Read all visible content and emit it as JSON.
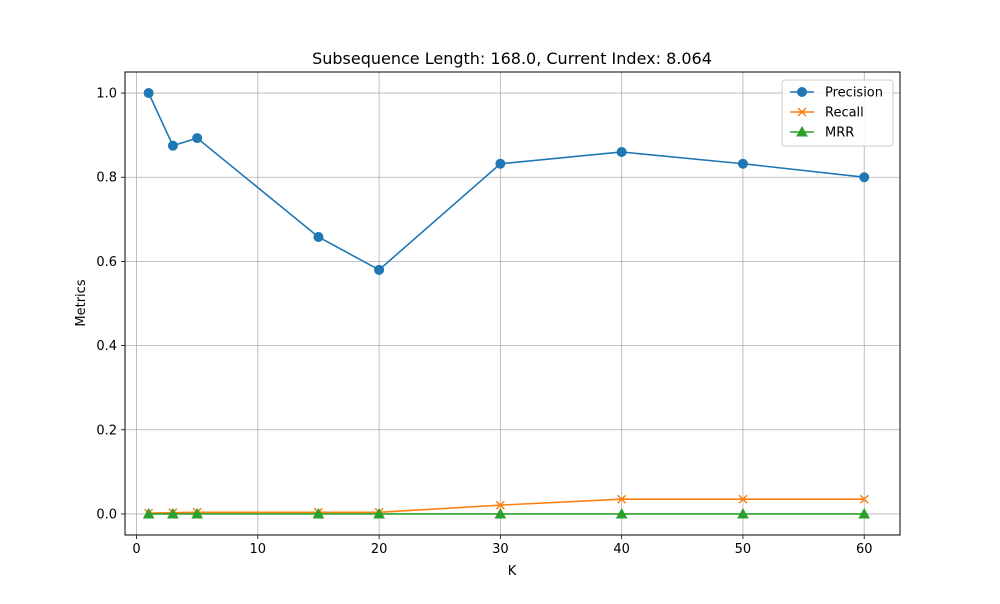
{
  "chart_data": {
    "type": "line",
    "title": "Subsequence Length: 168.0, Current Index: 8.064",
    "xlabel": "K",
    "ylabel": "Metrics",
    "xlim": [
      -0.95,
      62.95
    ],
    "ylim": [
      -0.05,
      1.05
    ],
    "xticks": [
      0,
      10,
      20,
      30,
      40,
      50,
      60
    ],
    "xtick_labels": [
      "0",
      "10",
      "20",
      "30",
      "40",
      "50",
      "60"
    ],
    "yticks": [
      0.0,
      0.2,
      0.4,
      0.6,
      0.8,
      1.0
    ],
    "ytick_labels": [
      "0.0",
      "0.2",
      "0.4",
      "0.6",
      "0.8",
      "1.0"
    ],
    "grid": true,
    "legend_position": "top-right",
    "x": [
      1,
      3,
      5,
      15,
      20,
      30,
      40,
      50,
      60
    ],
    "series": [
      {
        "name": "Precision",
        "color": "#1f77b4",
        "marker": "circle",
        "values": [
          1.0,
          0.875,
          0.893,
          0.658,
          0.58,
          0.832,
          0.86,
          0.832,
          0.8
        ]
      },
      {
        "name": "Recall",
        "color": "#ff7f0e",
        "marker": "x",
        "values": [
          0.002,
          0.003,
          0.004,
          0.004,
          0.004,
          0.021,
          0.035,
          0.035,
          0.035
        ]
      },
      {
        "name": "MRR",
        "color": "#2ca02c",
        "marker": "triangle",
        "values": [
          0.0,
          0.0,
          0.0,
          0.0,
          0.0,
          0.0,
          0.0,
          0.0,
          0.0
        ]
      }
    ]
  }
}
